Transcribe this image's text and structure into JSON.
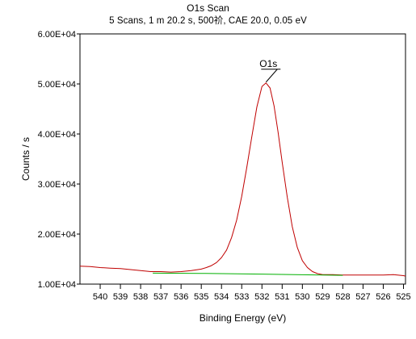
{
  "chart_data": {
    "type": "line",
    "title": "O1s Scan",
    "subtitle": "5 Scans,  1 m 20.2 s,  500祄,  CAE 20.0,  0.05 eV",
    "xlabel": "Binding Energy (eV)",
    "ylabel": "Counts / s",
    "x_reversed": true,
    "xlim": [
      541,
      524.9
    ],
    "ylim": [
      10000,
      60000
    ],
    "x_ticks": [
      540,
      539,
      538,
      537,
      536,
      535,
      534,
      533,
      532,
      531,
      530,
      529,
      528,
      527,
      526,
      525
    ],
    "y_ticks": [
      {
        "value": 10000,
        "label": "1.00E+04"
      },
      {
        "value": 20000,
        "label": "2.00E+04"
      },
      {
        "value": 30000,
        "label": "3.00E+04"
      },
      {
        "value": 40000,
        "label": "4.00E+04"
      },
      {
        "value": 50000,
        "label": "5.00E+04"
      },
      {
        "value": 60000,
        "label": "6.00E+04"
      }
    ],
    "annotation": {
      "text": "O1s",
      "x": 531.8,
      "y": 50200
    },
    "grid": false,
    "legend": "none",
    "series": [
      {
        "color": "#c00000",
        "x": [
          541.0,
          540.5,
          540.0,
          539.5,
          539.0,
          538.5,
          538.0,
          537.5,
          537.0,
          536.5,
          536.0,
          535.5,
          535.0,
          534.75,
          534.5,
          534.25,
          534.0,
          533.75,
          533.5,
          533.25,
          533.0,
          532.75,
          532.5,
          532.25,
          532.0,
          531.8,
          531.6,
          531.4,
          531.2,
          531.0,
          530.75,
          530.5,
          530.25,
          530.0,
          529.75,
          529.5,
          529.25,
          529.0,
          528.5,
          528.0,
          527.5,
          527.0,
          526.5,
          526.0,
          525.5,
          525.0,
          524.9
        ],
        "y": [
          13600,
          13500,
          13300,
          13200,
          13100,
          12900,
          12700,
          12500,
          12500,
          12400,
          12500,
          12700,
          13000,
          13300,
          13700,
          14300,
          15300,
          16800,
          19300,
          22800,
          27500,
          33300,
          39500,
          45400,
          49500,
          50200,
          49200,
          45600,
          40300,
          34400,
          27400,
          21500,
          17300,
          14700,
          13300,
          12500,
          12100,
          11900,
          11900,
          11800,
          11800,
          11800,
          11800,
          11800,
          11900,
          11700,
          11600
        ]
      },
      {
        "color": "#00b000",
        "x": [
          537.4,
          535.0,
          532.0,
          529.0,
          528.0
        ],
        "y": [
          12200,
          12150,
          12000,
          11800,
          11750
        ]
      }
    ]
  }
}
